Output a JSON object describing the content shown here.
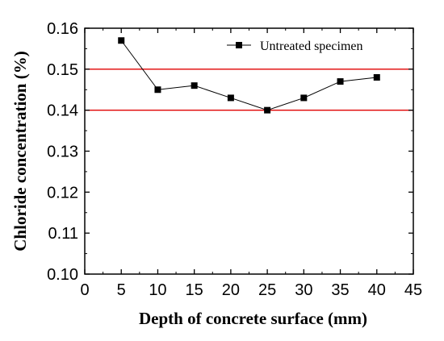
{
  "chart_data": {
    "type": "line",
    "xlabel": "Depth of concrete surface (mm)",
    "ylabel": "Chloride concentration (%)",
    "xlim": [
      0,
      45
    ],
    "ylim": [
      0.1,
      0.16
    ],
    "xticks": [
      0,
      5,
      10,
      15,
      20,
      25,
      30,
      35,
      40,
      45
    ],
    "yticks": [
      0.1,
      0.11,
      0.12,
      0.13,
      0.14,
      0.15,
      0.16
    ],
    "xtick_labels": [
      "0",
      "5",
      "10",
      "15",
      "20",
      "25",
      "30",
      "35",
      "40",
      "45"
    ],
    "ytick_labels": [
      "0.10",
      "0.11",
      "0.12",
      "0.13",
      "0.14",
      "0.15",
      "0.16"
    ],
    "grid": false,
    "legend_position": "top-right",
    "series": [
      {
        "name": "Untreated specimen",
        "marker": "square",
        "color": "#000000",
        "x": [
          5,
          10,
          15,
          20,
          25,
          30,
          35,
          40
        ],
        "y": [
          0.157,
          0.145,
          0.146,
          0.143,
          0.14,
          0.143,
          0.147,
          0.148
        ]
      }
    ],
    "reference_lines": [
      {
        "axis": "y",
        "value": 0.15,
        "color": "#e00000"
      },
      {
        "axis": "y",
        "value": 0.14,
        "color": "#e00000"
      }
    ]
  }
}
